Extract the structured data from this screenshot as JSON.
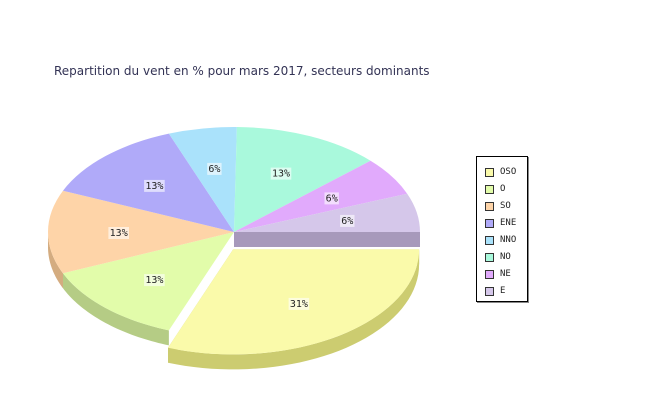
{
  "chart_data": {
    "type": "pie",
    "title": "Repartition du vent en % pour mars 2017, secteurs dominants",
    "slices": [
      {
        "label": "OSO",
        "value": 31,
        "display": "31%",
        "color": "#fafaaa",
        "side": "#cccc70",
        "exploded": true
      },
      {
        "label": "O",
        "value": 13,
        "display": "13%",
        "color": "#e2fcaa",
        "side": "#b5cc85"
      },
      {
        "label": "SO",
        "value": 13,
        "display": "13%",
        "color": "#fed4a8",
        "side": "#d4ac80"
      },
      {
        "label": "ENE",
        "value": 13,
        "display": "13%",
        "color": "#b0aaf9",
        "side": "#8c88c8"
      },
      {
        "label": "NNO",
        "value": 6,
        "display": "6%",
        "color": "#aae2fb",
        "side": "#88b5c8"
      },
      {
        "label": "NO",
        "value": 13,
        "display": "13%",
        "color": "#a9f9dc",
        "side": "#88c8b0"
      },
      {
        "label": "NE",
        "value": 6,
        "display": "6%",
        "color": "#e1aafc",
        "side": "#b488c8"
      },
      {
        "label": "E",
        "value": 6,
        "display": "6%",
        "color": "#d5c7ea",
        "side": "#a799bb"
      }
    ],
    "legend_position": "right"
  }
}
